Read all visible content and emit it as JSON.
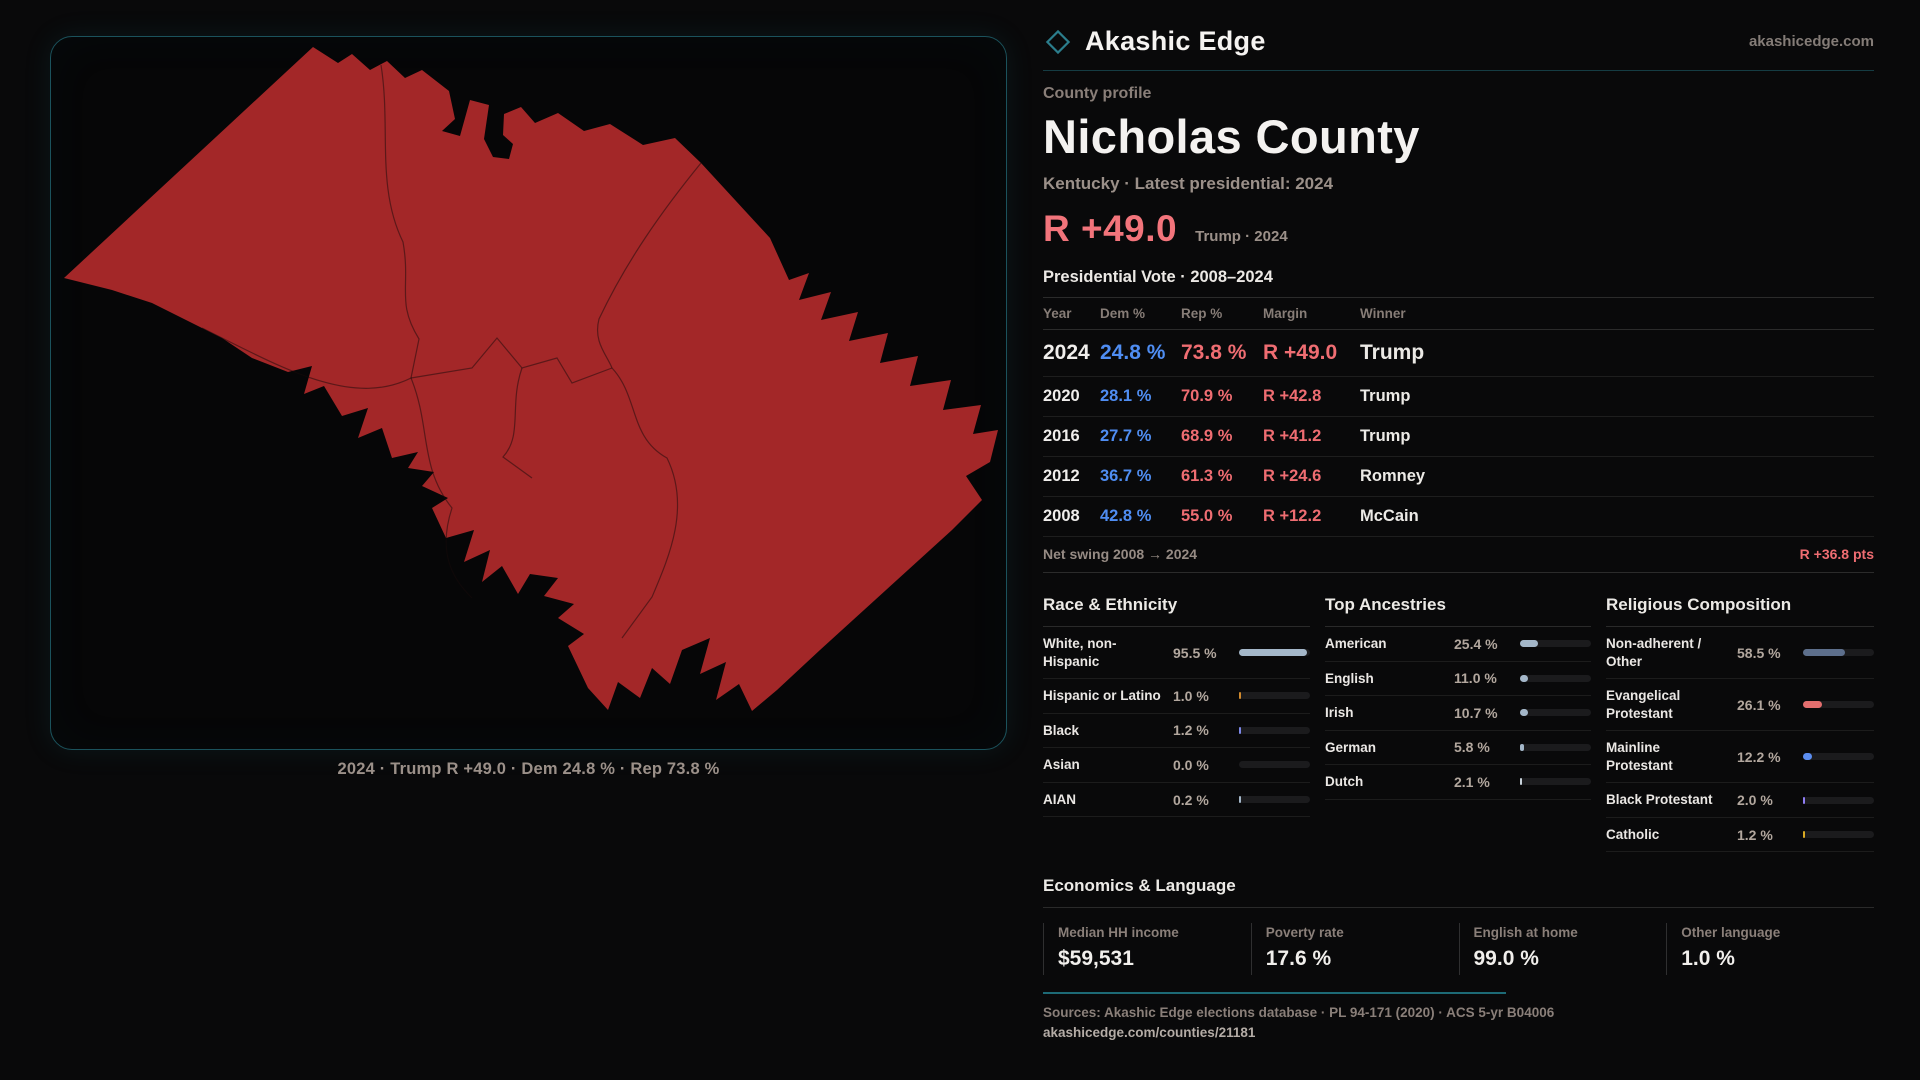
{
  "brand": {
    "name": "Akashic Edge",
    "domain": "akashicedge.com",
    "accent": "#2b7d8c"
  },
  "map": {
    "caption": "2024 · Trump R +49.0 · Dem 24.8 % · Rep 73.8 %",
    "fill": "#a32728"
  },
  "profile": {
    "kicker": "County profile",
    "title": "Nicholas County",
    "subtitle": "Kentucky · Latest presidential: 2024",
    "margin_big": "R +49.0",
    "margin_context": "Trump · 2024",
    "table_title": "Presidential Vote · 2008–2024"
  },
  "results_table": {
    "columns": [
      "Year",
      "Dem %",
      "Rep %",
      "Margin",
      "Winner"
    ],
    "rows": [
      {
        "year": "2024",
        "dem": "24.8 %",
        "rep": "73.8 %",
        "margin": "R +49.0",
        "winner": "Trump"
      },
      {
        "year": "2020",
        "dem": "28.1 %",
        "rep": "70.9 %",
        "margin": "R +42.8",
        "winner": "Trump"
      },
      {
        "year": "2016",
        "dem": "27.7 %",
        "rep": "68.9 %",
        "margin": "R +41.2",
        "winner": "Trump"
      },
      {
        "year": "2012",
        "dem": "36.7 %",
        "rep": "61.3 %",
        "margin": "R +24.6",
        "winner": "Romney"
      },
      {
        "year": "2008",
        "dem": "42.8 %",
        "rep": "55.0 %",
        "margin": "R +12.2",
        "winner": "McCain"
      }
    ]
  },
  "net_swing": {
    "label": "Net swing 2008 → 2024",
    "value": "R +36.8 pts"
  },
  "race_ethnicity": {
    "title": "Race & Ethnicity",
    "rows": [
      {
        "label": "White, non-Hispanic",
        "value": "95.5 %",
        "pct": 95.5,
        "color": "#a4b7c9"
      },
      {
        "label": "Hispanic or Latino",
        "value": "1.0 %",
        "pct": 1.0,
        "color": "#d08a2e"
      },
      {
        "label": "Black",
        "value": "1.2 %",
        "pct": 1.2,
        "color": "#7d88e8"
      },
      {
        "label": "Asian",
        "value": "0.0 %",
        "pct": 0.0,
        "color": "#a4b7c9"
      },
      {
        "label": "AIAN",
        "value": "0.2 %",
        "pct": 0.2,
        "color": "#a4b7c9"
      }
    ]
  },
  "ancestries": {
    "title": "Top Ancestries",
    "rows": [
      {
        "label": "American",
        "value": "25.4 %",
        "pct": 25.4,
        "color": "#a4b7c9"
      },
      {
        "label": "English",
        "value": "11.0 %",
        "pct": 11.0,
        "color": "#a4b7c9"
      },
      {
        "label": "Irish",
        "value": "10.7 %",
        "pct": 10.7,
        "color": "#a4b7c9"
      },
      {
        "label": "German",
        "value": "5.8 %",
        "pct": 5.8,
        "color": "#a4b7c9"
      },
      {
        "label": "Dutch",
        "value": "2.1 %",
        "pct": 2.1,
        "color": "#c8d2da"
      }
    ]
  },
  "religion": {
    "title": "Religious Composition",
    "rows": [
      {
        "label": "Non-adherent / Other",
        "value": "58.5 %",
        "pct": 58.5,
        "color": "#5d6f8c"
      },
      {
        "label": "Evangelical Protestant",
        "value": "26.1 %",
        "pct": 26.1,
        "color": "#e36e6e"
      },
      {
        "label": "Mainline Protestant",
        "value": "12.2 %",
        "pct": 12.2,
        "color": "#5b8df0"
      },
      {
        "label": "Black Protestant",
        "value": "2.0 %",
        "pct": 2.0,
        "color": "#8f7df2"
      },
      {
        "label": "Catholic",
        "value": "1.2 %",
        "pct": 1.2,
        "color": "#d9a923"
      }
    ]
  },
  "economics": {
    "title": "Economics & Language",
    "stats": [
      {
        "label": "Median HH income",
        "value": "$59,531"
      },
      {
        "label": "Poverty rate",
        "value": "17.6 %"
      },
      {
        "label": "English at home",
        "value": "99.0 %"
      },
      {
        "label": "Other language",
        "value": "1.0 %"
      }
    ]
  },
  "footer": {
    "sources": "Sources: Akashic Edge elections database · PL 94-171 (2020) · ACS 5-yr B04006",
    "permalink": "akashicedge.com/counties/21181"
  }
}
